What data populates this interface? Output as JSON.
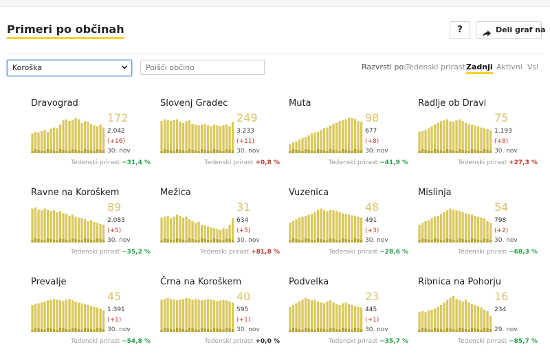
{
  "header": {
    "title": "Primeri po občinah",
    "help_label": "?",
    "share_label": "Deli graf na"
  },
  "filters": {
    "region_value": "Koroška",
    "search_placeholder": "Poišči občino",
    "sort_label": "Razvrsti po:",
    "sort_options": [
      "Tedenski prirast",
      "Zadnji",
      "Aktivni",
      "Vsi"
    ],
    "sort_active": "Zadnji"
  },
  "colors": {
    "accent": "#f5d327",
    "bar": "#d9c85e",
    "bar_dark": "#b5a22c",
    "negative_growth": "#27a04b",
    "positive_growth": "#c0392b"
  },
  "cards": [
    {
      "name": "Dravograd",
      "last": "172",
      "total": "2.042",
      "delta": "(+16)",
      "date": "30. nov",
      "growth_label": "Tedenski prirast",
      "growth": "−31,4 %",
      "growth_sign": "neg",
      "series": [
        0.55,
        0.6,
        0.58,
        0.62,
        0.65,
        0.6,
        0.68,
        0.72,
        0.7,
        0.8,
        0.92,
        0.95,
        0.9,
        0.93,
        0.98,
        0.95,
        0.85,
        0.9,
        0.88,
        0.82,
        0.78,
        0.75,
        0.8,
        0.72
      ]
    },
    {
      "name": "Slovenj Gradec",
      "last": "249",
      "total": "3.233",
      "delta": "(+11)",
      "date": "30. nov",
      "growth_label": "Tedenski prirast",
      "growth": "+0,8 %",
      "growth_sign": "pos",
      "series": [
        0.9,
        0.95,
        0.92,
        0.9,
        0.93,
        0.95,
        0.88,
        0.85,
        0.9,
        0.92,
        0.82,
        0.8,
        0.78,
        0.8,
        0.82,
        0.78,
        0.75,
        0.8,
        0.78,
        0.76,
        0.78,
        0.8,
        0.75,
        0.88
      ]
    },
    {
      "name": "Muta",
      "last": "98",
      "total": "677",
      "delta": "(+8)",
      "date": "30. nov",
      "growth_label": "Tedenski prirast",
      "growth": "−41,9 %",
      "growth_sign": "neg",
      "series": [
        0.25,
        0.3,
        0.33,
        0.38,
        0.42,
        0.45,
        0.5,
        0.55,
        0.58,
        0.6,
        0.65,
        0.7,
        0.72,
        0.78,
        0.82,
        0.85,
        0.9,
        0.92,
        0.95,
        1.0,
        0.98,
        0.96,
        0.9,
        0.88
      ]
    },
    {
      "name": "Radlje ob Dravi",
      "last": "75",
      "total": "1.193",
      "delta": "(+8)",
      "date": "30. nov",
      "growth_label": "Tedenski prirast",
      "growth": "+27,3 %",
      "growth_sign": "pos",
      "series": [
        0.6,
        0.62,
        0.65,
        0.7,
        0.75,
        0.8,
        0.85,
        0.9,
        0.92,
        0.95,
        0.9,
        0.88,
        0.92,
        0.95,
        0.9,
        0.85,
        0.82,
        0.8,
        0.78,
        0.75,
        0.72,
        0.7,
        0.68,
        0.65
      ]
    },
    {
      "name": "Ravne na Koroškem",
      "last": "89",
      "total": "2.083",
      "delta": "(+5)",
      "date": "30. nov",
      "growth_label": "Tedenski prirast",
      "growth": "−35,2 %",
      "growth_sign": "neg",
      "series": [
        0.95,
        0.98,
        0.92,
        0.9,
        0.95,
        0.92,
        0.88,
        0.9,
        0.85,
        0.88,
        0.82,
        0.8,
        0.75,
        0.78,
        0.72,
        0.7,
        0.68,
        0.65,
        0.6,
        0.62,
        0.58,
        0.55,
        0.52,
        0.5
      ]
    },
    {
      "name": "Mežica",
      "last": "31",
      "total": "634",
      "delta": "(+5)",
      "date": "30. nov",
      "growth_label": "Tedenski prirast",
      "growth": "+81,8 %",
      "growth_sign": "pos",
      "series": [
        0.7,
        0.72,
        0.75,
        0.68,
        0.72,
        0.78,
        0.75,
        0.7,
        0.72,
        0.65,
        0.6,
        0.55,
        0.58,
        0.5,
        0.48,
        0.45,
        0.42,
        0.4,
        0.38,
        0.35,
        0.4,
        0.38,
        0.5,
        0.68
      ]
    },
    {
      "name": "Vuzenica",
      "last": "48",
      "total": "491",
      "delta": "(+3)",
      "date": "30. nov",
      "growth_label": "Tedenski prirast",
      "growth": "−28,6 %",
      "growth_sign": "neg",
      "series": [
        0.55,
        0.6,
        0.65,
        0.7,
        0.72,
        0.75,
        0.78,
        0.8,
        0.85,
        0.92,
        0.95,
        0.9,
        0.88,
        0.92,
        0.9,
        0.88,
        0.85,
        0.82,
        0.8,
        0.78,
        0.76,
        0.75,
        0.72,
        0.7
      ]
    },
    {
      "name": "Mislinja",
      "last": "54",
      "total": "798",
      "delta": "(+2)",
      "date": "30. nov",
      "growth_label": "Tedenski prirast",
      "growth": "−68,3 %",
      "growth_sign": "neg",
      "series": [
        0.5,
        0.55,
        0.6,
        0.62,
        0.68,
        0.72,
        0.75,
        0.8,
        0.85,
        0.9,
        0.95,
        0.92,
        0.9,
        0.88,
        0.85,
        0.82,
        0.8,
        0.78,
        0.75,
        0.72,
        0.7,
        0.68,
        0.6,
        0.55
      ]
    },
    {
      "name": "Prevalje",
      "last": "45",
      "total": "1.391",
      "delta": "(+1)",
      "date": "30. nov",
      "growth_label": "Tedenski prirast",
      "growth": "−54,8 %",
      "growth_sign": "neg",
      "series": [
        0.75,
        0.78,
        0.8,
        0.82,
        0.85,
        0.88,
        0.9,
        0.92,
        0.9,
        0.88,
        0.86,
        0.9,
        0.92,
        0.88,
        0.85,
        0.82,
        0.8,
        0.78,
        0.75,
        0.72,
        0.7,
        0.68,
        0.65,
        0.6
      ]
    },
    {
      "name": "Črna na Koroškem",
      "last": "40",
      "total": "595",
      "delta": "(+1)",
      "date": "30. nov",
      "growth_label": "Tedenski prirast",
      "growth": "+0,0 %",
      "growth_sign": "zero",
      "series": [
        0.9,
        0.92,
        0.95,
        0.92,
        0.9,
        0.88,
        0.9,
        0.92,
        0.95,
        0.93,
        0.9,
        0.92,
        0.9,
        0.88,
        0.9,
        0.92,
        0.9,
        0.88,
        0.86,
        0.88,
        0.9,
        0.88,
        0.85,
        0.82
      ]
    },
    {
      "name": "Podvelka",
      "last": "23",
      "total": "445",
      "delta": "(+1)",
      "date": "30. nov",
      "growth_label": "Tedenski prirast",
      "growth": "−35,7 %",
      "growth_sign": "neg",
      "series": [
        0.7,
        0.75,
        0.8,
        0.85,
        0.9,
        0.95,
        0.92,
        0.88,
        0.9,
        0.85,
        0.82,
        0.8,
        0.85,
        0.88,
        0.82,
        0.78,
        0.75,
        0.8,
        0.82,
        0.78,
        0.75,
        0.72,
        0.7,
        0.68
      ]
    },
    {
      "name": "Ribnica na Pohorju",
      "last": "16",
      "total": "234",
      "delta": "",
      "date": "29. nov",
      "growth_label": "Tedenski prirast",
      "growth": "−85,7 %",
      "growth_sign": "neg",
      "series": [
        0.55,
        0.58,
        0.55,
        0.6,
        0.62,
        0.65,
        0.7,
        0.75,
        0.82,
        0.9,
        0.95,
        1.0,
        0.92,
        0.88,
        0.85,
        0.9,
        0.82,
        0.78,
        0.75,
        0.72,
        0.68,
        0.62,
        0.58,
        0.45
      ]
    }
  ]
}
